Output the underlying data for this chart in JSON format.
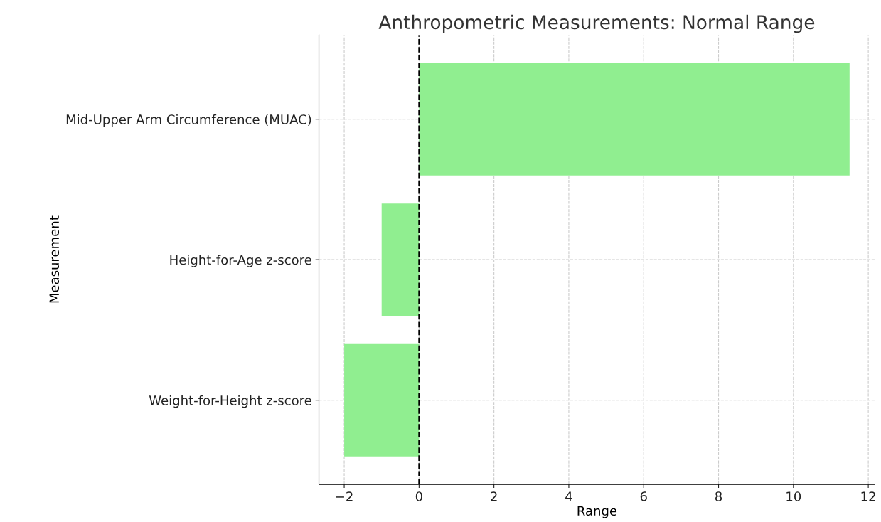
{
  "chart_data": {
    "type": "bar",
    "orientation": "horizontal",
    "title": "Anthropometric Measurements: Normal Range",
    "xlabel": "Range",
    "ylabel": "Measurement",
    "categories": [
      "Mid-Upper Arm Circumference (MUAC)",
      "Height-for-Age z-score",
      "Weight-for-Height z-score"
    ],
    "values": [
      11.5,
      -1,
      -2
    ],
    "color": "#90ee90",
    "xlim": [
      -2.675,
      12.175
    ],
    "xticks": [
      {
        "value": -2,
        "label": "−2"
      },
      0,
      2,
      4,
      6,
      8,
      10,
      12
    ],
    "ref_lines": [
      {
        "axis": "x",
        "value": 0,
        "color": "#000000",
        "line_style": "dashed"
      }
    ],
    "grid": true
  }
}
